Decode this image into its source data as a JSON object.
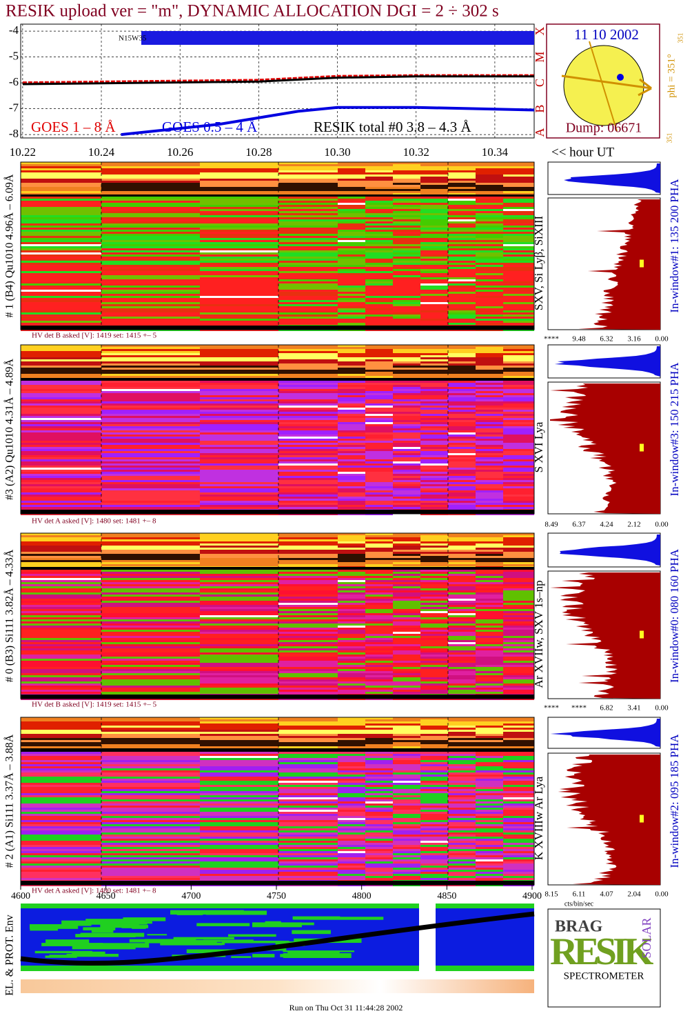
{
  "title": "RESIK upload ver = \"m\", DYNAMIC ALLOCATION  DGI =   2 ÷ 302 s",
  "chart_data": {
    "type": "line",
    "xlim": [
      10.2195,
      10.35
    ],
    "xticks": [
      {
        "value": 10.22,
        "label": "10.22"
      },
      10.24,
      10.26,
      10.28,
      {
        "value": 10.3,
        "label": "10.30"
      },
      10.32,
      10.34
    ],
    "x_label": "<< hour UT",
    "ylim": [
      -8.13,
      -3.73
    ],
    "yticks": [
      -4,
      -5,
      -6,
      -7,
      -8
    ],
    "class_labels": [
      "X",
      "M",
      "C",
      "B",
      "A"
    ],
    "annotation": "N15W35",
    "series": [
      {
        "name": "GOES 1 – 8 Å",
        "color": "#e00000",
        "x": [
          10.22,
          10.25,
          10.28,
          10.3,
          10.32,
          10.35
        ],
        "values": [
          -6.0,
          -5.95,
          -5.9,
          -5.75,
          -5.72,
          -5.72
        ]
      },
      {
        "name": "GOES 0.5 – 4 Å",
        "color": "#0000e0",
        "x": [
          10.245,
          10.27,
          10.29,
          10.3,
          10.32,
          10.35
        ],
        "values": [
          -8.0,
          -7.6,
          -7.1,
          -6.95,
          -6.95,
          -7.05
        ]
      },
      {
        "name": "RESIK total #0  3.8 – 4.3 Å",
        "color": "#000000",
        "x": [
          10.22,
          10.25,
          10.28,
          10.3,
          10.32,
          10.35
        ],
        "values": [
          -6.05,
          -6.0,
          -5.95,
          -5.8,
          -5.75,
          -5.75
        ]
      }
    ]
  },
  "sun": {
    "date": "11 10 2002",
    "phi": "phi = 351°",
    "phi_small": "351",
    "left_small": "351",
    "dump": "Dump: 06671"
  },
  "panels": [
    {
      "label": "# 1 (B4) Qu1010 4.96Å – 6.09Å",
      "lines": "SXV, Si Lyβ, SiXIII",
      "hv": "HV det B asked [V]:  1419 set:  1415 +–   5",
      "window": "In-window#1:  135 200 PHA",
      "scale": [
        "****",
        "9.48",
        "6.32",
        "3.16",
        "0.00"
      ]
    },
    {
      "label": "#3 (A2) Qu1010  4.31Å – 4.89Å",
      "lines": "S XVI Lya",
      "hv": "HV det A asked [V]:  1480 set:  1481 +–   8",
      "window": "In-window#3:  150 215 PHA",
      "scale": [
        "8.49",
        "6.37",
        "4.24",
        "2.12",
        "0.00"
      ]
    },
    {
      "label": "# 0 (B3) Si111  3.82Å – 4.33Å",
      "lines": "Ar XVIIw, SXV 1s–np",
      "hv": "HV det B asked [V]:  1419 set:  1415 +–   5",
      "window": "In-window#0:  080 160 PHA",
      "scale": [
        "****",
        "****",
        "6.82",
        "3.41",
        "0.00"
      ]
    },
    {
      "label": "# 2 (A1) Si111  3.37Å – 3.88Å",
      "lines": "K XVIIIw  Ar Lya",
      "hv": "HV det A asked [V]:  1480 set:  1481 +–   8",
      "window": "In-window#2:  095 185 PHA",
      "scale": [
        "8.15",
        "6.11",
        "4.07",
        "2.04",
        "0.00"
      ]
    }
  ],
  "scale_unit": "cts/bin/sec",
  "bottom_xlim": [
    4600,
    4900
  ],
  "bottom_xticks": [
    4600,
    4650,
    4700,
    4750,
    4800,
    4850,
    4900
  ],
  "env_label": "EL. & PROT. Env",
  "logo": {
    "top": "BRAG",
    "main": "RESIK",
    "side": "SOLAR",
    "bottom": "SPECTROMETER"
  },
  "footer": "Run on Thu Oct 31 11:44:28 2002"
}
